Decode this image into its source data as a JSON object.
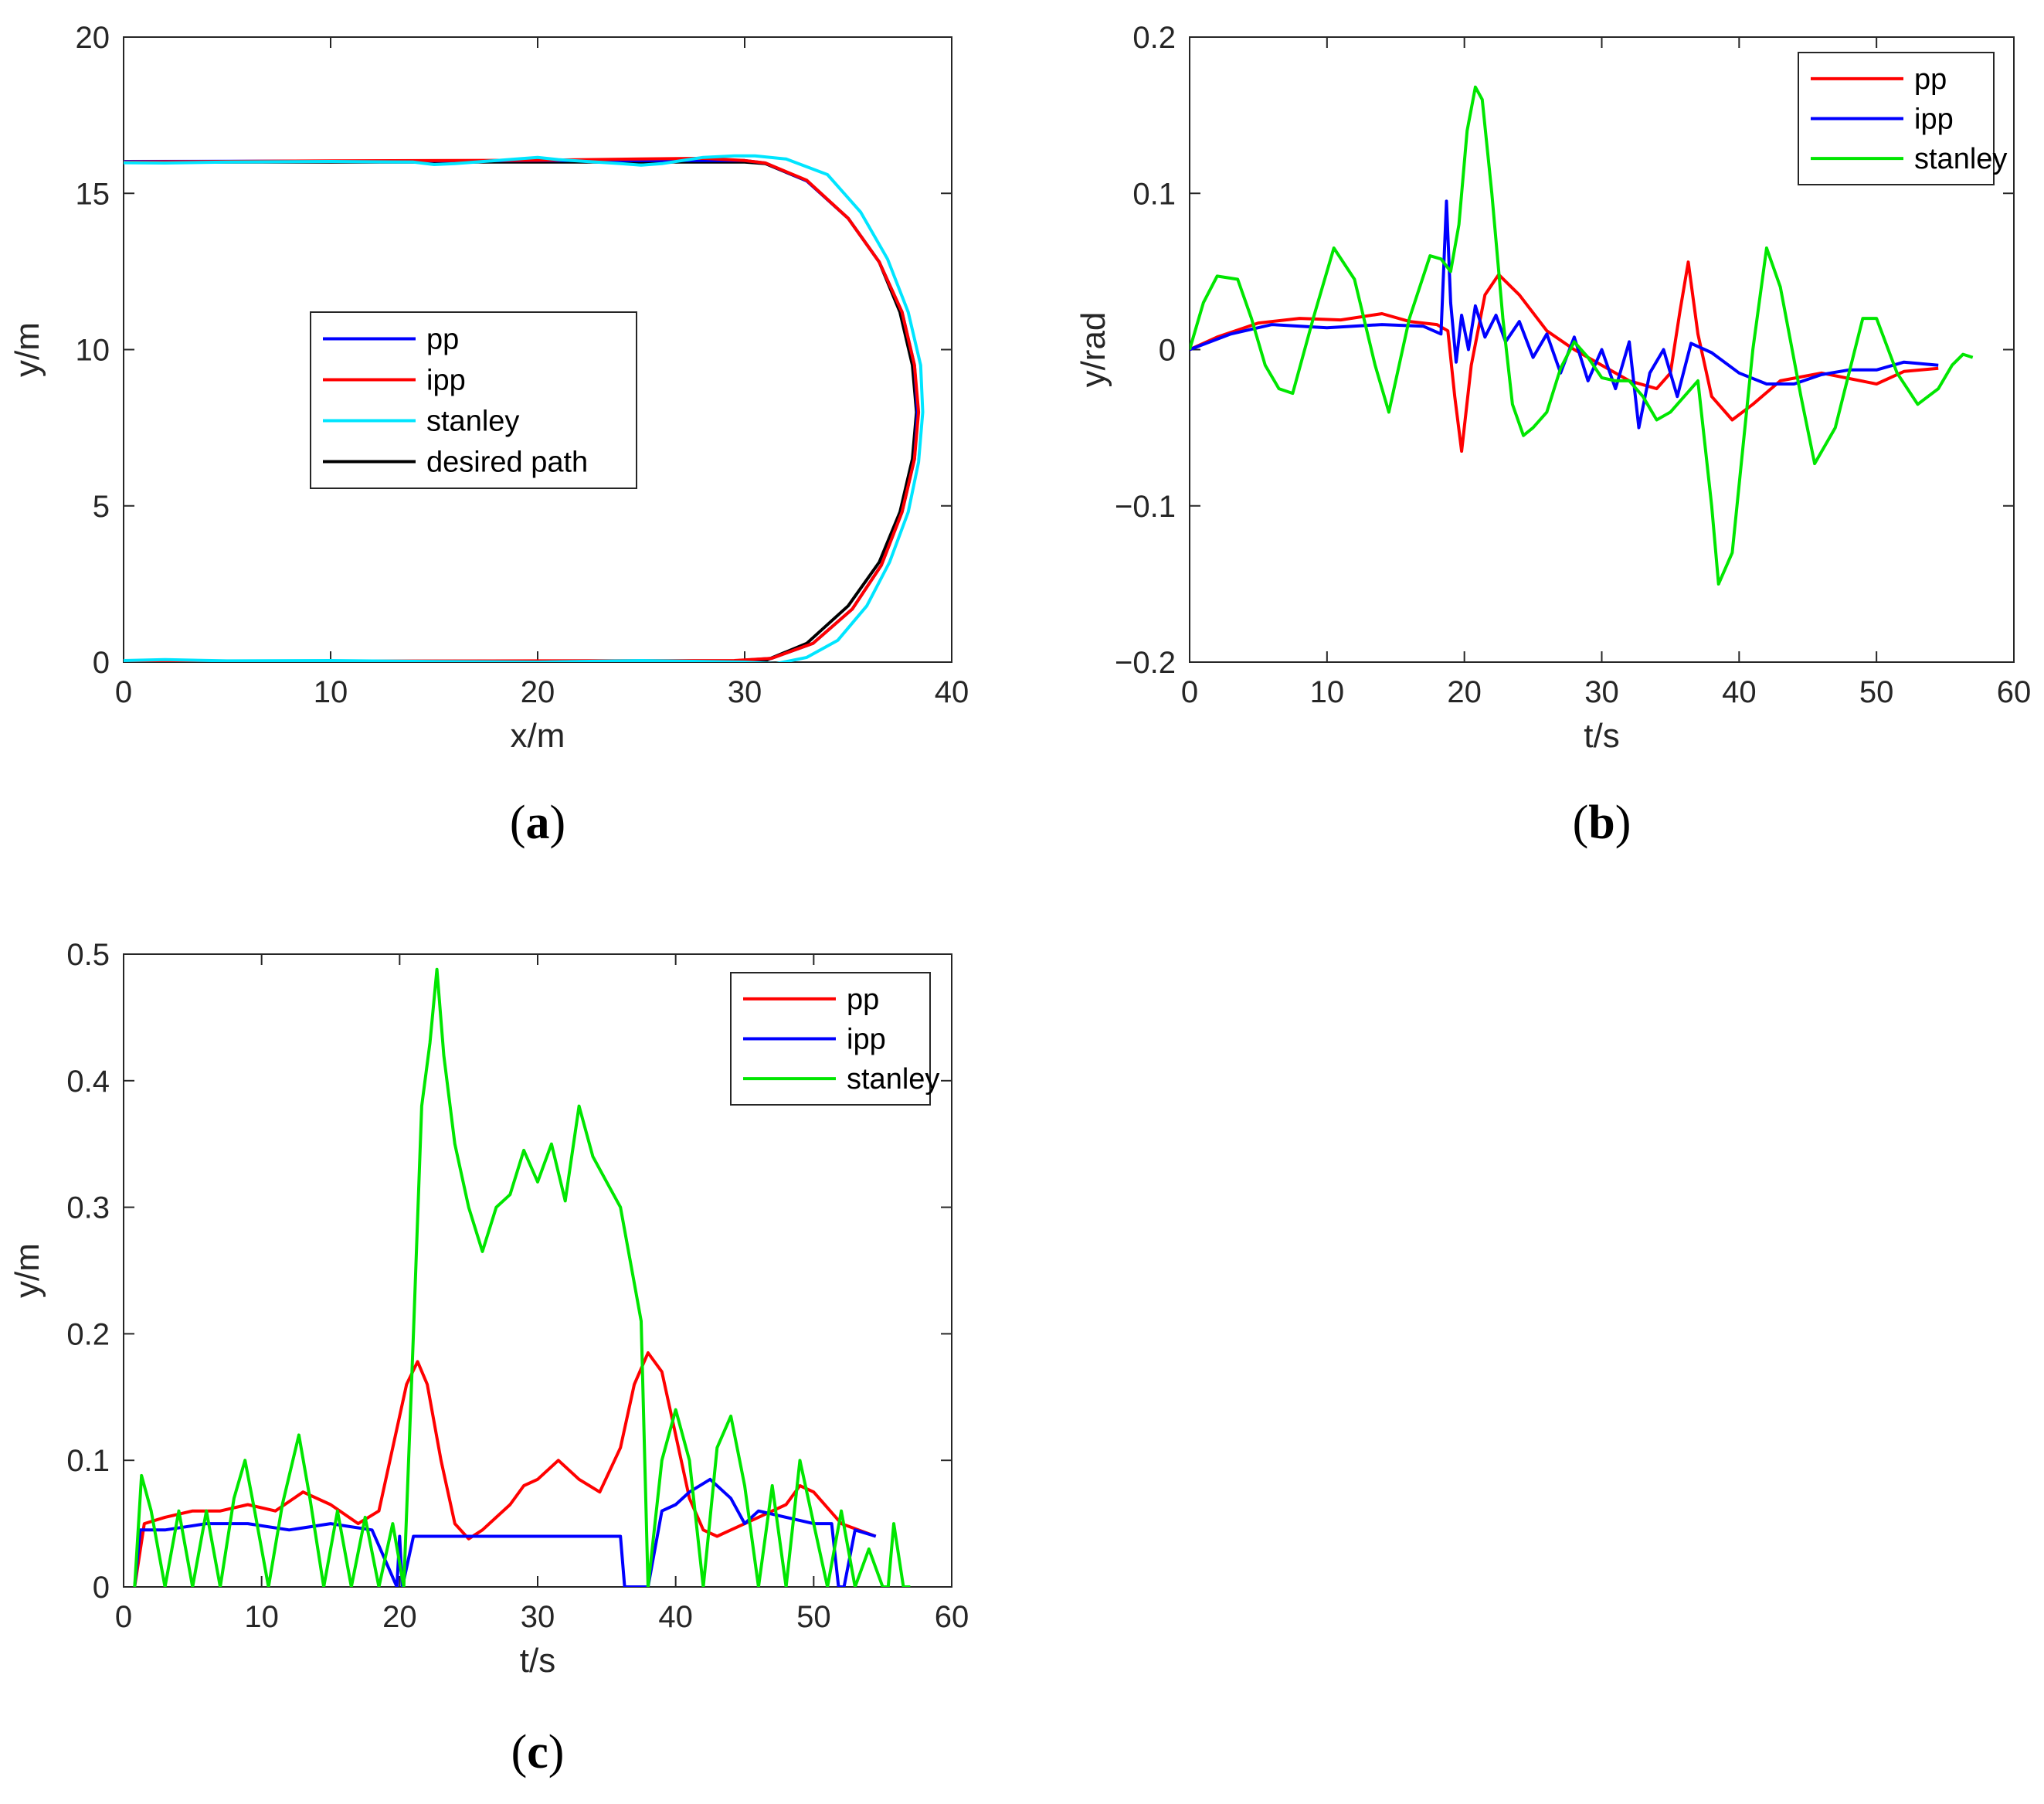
{
  "chart_data": [
    {
      "id": "a",
      "type": "line",
      "caption_letter": "a",
      "xlabel": "x/m",
      "ylabel": "y/m",
      "xlim": [
        0,
        40
      ],
      "ylim": [
        0,
        20
      ],
      "xticks": [
        0,
        10,
        20,
        30,
        40
      ],
      "yticks": [
        0,
        5,
        10,
        15,
        20
      ],
      "legend": [
        "pp",
        "ipp",
        "stanley",
        "desired path"
      ],
      "series": [
        {
          "name": "desired path",
          "color": "#000000",
          "x": [
            0,
            10,
            20,
            30,
            31,
            33,
            35,
            36.5,
            37.5,
            38.1,
            38.3,
            38.1,
            37.5,
            36.5,
            35,
            33,
            31,
            30,
            20,
            10,
            0
          ],
          "y": [
            16,
            16,
            16,
            16,
            15.95,
            15.4,
            14.2,
            12.8,
            11.2,
            9.5,
            8,
            6.5,
            4.8,
            3.2,
            1.8,
            0.6,
            0.05,
            0,
            0,
            0,
            0
          ]
        },
        {
          "name": "pp",
          "color": "#0000ff",
          "x": [
            0,
            10,
            20,
            30,
            31,
            33,
            35,
            36.5,
            37.6,
            38.2,
            38.35,
            38.2,
            37.6,
            36.6,
            35.2,
            33.3,
            31.3,
            29.5,
            28,
            20,
            10,
            0
          ],
          "y": [
            16.02,
            16.03,
            16.05,
            16.05,
            15.97,
            15.4,
            14.2,
            12.8,
            11.2,
            9.5,
            8,
            6.5,
            4.8,
            3.1,
            1.7,
            0.6,
            0.12,
            0.04,
            0.02,
            0,
            0.01,
            0
          ]
        },
        {
          "name": "ipp",
          "color": "#ff0000",
          "x": [
            0,
            10,
            20,
            25,
            28,
            30,
            31,
            33,
            35,
            36.5,
            37.6,
            38.2,
            38.4,
            38.2,
            37.6,
            36.6,
            35.2,
            33.3,
            31.3,
            29.5,
            20,
            10,
            0
          ],
          "y": [
            16,
            16.04,
            16.06,
            16.1,
            16.12,
            16.05,
            15.97,
            15.42,
            14.2,
            12.8,
            11.2,
            9.5,
            8,
            6.5,
            4.8,
            3.1,
            1.7,
            0.6,
            0.12,
            0.05,
            0.04,
            0.03,
            0
          ]
        },
        {
          "name": "stanley",
          "color": "#00e5ff",
          "x": [
            0,
            2,
            5,
            10,
            14,
            15,
            16,
            19,
            20,
            21,
            24,
            25,
            26,
            28,
            29.5,
            30.5,
            32,
            34,
            35.6,
            36.9,
            37.9,
            38.5,
            38.6,
            38.4,
            37.9,
            37,
            35.9,
            34.5,
            33,
            31.5,
            30,
            25,
            20,
            15,
            10,
            5,
            2,
            0
          ],
          "y": [
            15.98,
            15.97,
            16.0,
            16.02,
            16.0,
            15.92,
            15.95,
            16.1,
            16.15,
            16.08,
            15.95,
            15.9,
            15.95,
            16.15,
            16.2,
            16.2,
            16.1,
            15.6,
            14.4,
            12.9,
            11.2,
            9.5,
            8,
            6.4,
            4.8,
            3.2,
            1.8,
            0.7,
            0.15,
            -0.05,
            0,
            0.05,
            0,
            0.02,
            0.05,
            0.04,
            0.08,
            0.05
          ]
        }
      ]
    },
    {
      "id": "b",
      "type": "line",
      "caption_letter": "b",
      "xlabel": "t/s",
      "ylabel": "y/rad",
      "xlim": [
        0,
        60
      ],
      "ylim": [
        -0.2,
        0.2
      ],
      "xticks": [
        0,
        10,
        20,
        30,
        40,
        50,
        60
      ],
      "yticks": [
        -0.2,
        -0.1,
        0,
        0.1,
        0.2
      ],
      "legend": [
        "pp",
        "ipp",
        "stanley"
      ],
      "series": [
        {
          "name": "pp",
          "color": "#ff0000",
          "x": [
            0,
            2,
            5,
            8,
            11,
            14,
            16,
            18,
            18.8,
            19.3,
            19.8,
            20.5,
            21.5,
            22.5,
            24,
            26,
            28,
            30,
            32,
            34,
            35,
            35.7,
            36.3,
            37,
            38,
            39.5,
            41,
            43,
            46,
            50,
            52,
            54.5
          ],
          "y": [
            0,
            0.008,
            0.017,
            0.02,
            0.019,
            0.023,
            0.018,
            0.016,
            0.012,
            -0.03,
            -0.065,
            -0.01,
            0.035,
            0.048,
            0.035,
            0.012,
            0,
            -0.01,
            -0.02,
            -0.025,
            -0.015,
            0.025,
            0.056,
            0.01,
            -0.03,
            -0.045,
            -0.035,
            -0.02,
            -0.015,
            -0.022,
            -0.014,
            -0.012
          ]
        },
        {
          "name": "ipp",
          "color": "#0000ff",
          "x": [
            0,
            3,
            6,
            10,
            14,
            17,
            18.3,
            18.7,
            19,
            19.4,
            19.8,
            20.3,
            20.8,
            21.5,
            22.3,
            23,
            24,
            25,
            26,
            27,
            28,
            29,
            30,
            31,
            32,
            32.7,
            33.5,
            34.5,
            35.5,
            36.5,
            38,
            40,
            42,
            44,
            46,
            48,
            50,
            52,
            54.5
          ],
          "y": [
            0,
            0.01,
            0.016,
            0.014,
            0.016,
            0.015,
            0.01,
            0.095,
            0.03,
            -0.008,
            0.022,
            0.0,
            0.028,
            0.008,
            0.022,
            0.005,
            0.018,
            -0.005,
            0.01,
            -0.015,
            0.008,
            -0.02,
            0.0,
            -0.025,
            0.005,
            -0.05,
            -0.015,
            0.0,
            -0.03,
            0.004,
            -0.002,
            -0.015,
            -0.022,
            -0.022,
            -0.016,
            -0.013,
            -0.013,
            -0.008,
            -0.01
          ]
        },
        {
          "name": "stanley",
          "color": "#00e600",
          "x": [
            0,
            1,
            2,
            3.5,
            4.5,
            5.5,
            6.5,
            7.5,
            9,
            10.5,
            12,
            13.5,
            14.5,
            16,
            17.5,
            18.3,
            19,
            19.6,
            20.2,
            20.8,
            21.3,
            22,
            22.8,
            23.5,
            24.3,
            25,
            26,
            27,
            28,
            29,
            30,
            31,
            32,
            33,
            34,
            35,
            36,
            37,
            38,
            38.5,
            39.5,
            41,
            42,
            43,
            44.5,
            45.5,
            47,
            49,
            50,
            51.5,
            53,
            54.5,
            55.5,
            56.3,
            57
          ],
          "y": [
            0,
            0.03,
            0.047,
            0.045,
            0.02,
            -0.01,
            -0.025,
            -0.028,
            0.02,
            0.065,
            0.045,
            -0.01,
            -0.04,
            0.02,
            0.06,
            0.058,
            0.05,
            0.08,
            0.14,
            0.168,
            0.16,
            0.1,
            0.02,
            -0.035,
            -0.055,
            -0.05,
            -0.04,
            -0.012,
            0.005,
            -0.005,
            -0.018,
            -0.02,
            -0.02,
            -0.03,
            -0.045,
            -0.04,
            -0.03,
            -0.02,
            -0.1,
            -0.15,
            -0.13,
            0.0,
            0.065,
            0.04,
            -0.03,
            -0.073,
            -0.05,
            0.02,
            0.02,
            -0.015,
            -0.035,
            -0.025,
            -0.01,
            -0.003,
            -0.005
          ]
        }
      ]
    },
    {
      "id": "c",
      "type": "line",
      "caption_letter": "c",
      "xlabel": "t/s",
      "ylabel": "y/m",
      "xlim": [
        0,
        60
      ],
      "ylim": [
        0,
        0.5
      ],
      "xticks": [
        0,
        10,
        20,
        30,
        40,
        50,
        60
      ],
      "yticks": [
        0,
        0.1,
        0.2,
        0.3,
        0.4,
        0.5
      ],
      "legend": [
        "pp",
        "ipp",
        "stanley"
      ],
      "series": [
        {
          "name": "pp",
          "color": "#ff0000",
          "x": [
            0.8,
            1.5,
            3,
            5,
            7,
            9,
            11,
            13,
            15,
            17,
            18.5,
            19.5,
            20.5,
            21.3,
            22,
            23,
            24,
            25,
            26,
            27,
            28,
            29,
            30,
            31.5,
            33,
            34.5,
            36,
            37,
            38,
            39,
            40,
            41,
            42,
            43,
            44,
            46,
            48,
            49,
            50,
            52,
            54.5
          ],
          "y": [
            0,
            0.05,
            0.055,
            0.06,
            0.06,
            0.065,
            0.06,
            0.075,
            0.065,
            0.05,
            0.06,
            0.11,
            0.16,
            0.178,
            0.16,
            0.1,
            0.05,
            0.038,
            0.045,
            0.055,
            0.065,
            0.08,
            0.085,
            0.1,
            0.085,
            0.075,
            0.11,
            0.16,
            0.185,
            0.17,
            0.12,
            0.07,
            0.045,
            0.04,
            0.045,
            0.055,
            0.065,
            0.08,
            0.075,
            0.05,
            0.04
          ]
        },
        {
          "name": "ipp",
          "color": "#0000ff",
          "x": [
            0.8,
            1.2,
            3,
            6,
            9,
            12,
            15,
            18,
            19.8,
            20.0,
            20.2,
            21,
            24,
            27,
            30,
            33,
            36,
            36.3,
            36.5,
            37,
            38,
            39,
            40,
            41,
            42.5,
            44,
            45,
            46,
            48,
            50,
            51.3,
            51.8,
            52.2,
            53,
            54.5
          ],
          "y": [
            0,
            0.045,
            0.045,
            0.05,
            0.05,
            0.045,
            0.05,
            0.045,
            0.0,
            0.04,
            0.0,
            0.04,
            0.04,
            0.04,
            0.04,
            0.04,
            0.04,
            0.0,
            0.0,
            0.0,
            0.0,
            0.06,
            0.065,
            0.075,
            0.085,
            0.07,
            0.05,
            0.06,
            0.055,
            0.05,
            0.05,
            0.0,
            0.0,
            0.045,
            0.04
          ]
        },
        {
          "name": "stanley",
          "color": "#00e600",
          "x": [
            0.8,
            1.3,
            2,
            3,
            4,
            5,
            6,
            7,
            8,
            8.8,
            9.5,
            10.5,
            11.5,
            12.7,
            13.5,
            14.5,
            15.5,
            16.5,
            17.5,
            18.5,
            19.5,
            20.3,
            21,
            21.6,
            22.2,
            22.7,
            23.2,
            24,
            25,
            26,
            27,
            28,
            29,
            30,
            31,
            32,
            33,
            34,
            35,
            36,
            37,
            37.5,
            38,
            39,
            40,
            41,
            42,
            43,
            44,
            45,
            46,
            47,
            48,
            49,
            50,
            51,
            52,
            53,
            54,
            55,
            55.4,
            55.8,
            56.5,
            57
          ],
          "y": [
            0,
            0.088,
            0.06,
            0.0,
            0.06,
            0.0,
            0.06,
            0.0,
            0.07,
            0.1,
            0.06,
            0.0,
            0.065,
            0.12,
            0.07,
            0.0,
            0.06,
            0.0,
            0.055,
            0.0,
            0.05,
            0.0,
            0.2,
            0.38,
            0.43,
            0.488,
            0.42,
            0.35,
            0.3,
            0.265,
            0.3,
            0.31,
            0.345,
            0.32,
            0.35,
            0.305,
            0.38,
            0.34,
            0.32,
            0.3,
            0.24,
            0.21,
            0.0,
            0.1,
            0.14,
            0.1,
            0.0,
            0.11,
            0.135,
            0.08,
            0.0,
            0.08,
            0.0,
            0.1,
            0.05,
            0.0,
            0.06,
            0.0,
            0.03,
            0.0,
            0.0,
            0.05,
            0.0,
            0.0
          ]
        }
      ]
    }
  ]
}
